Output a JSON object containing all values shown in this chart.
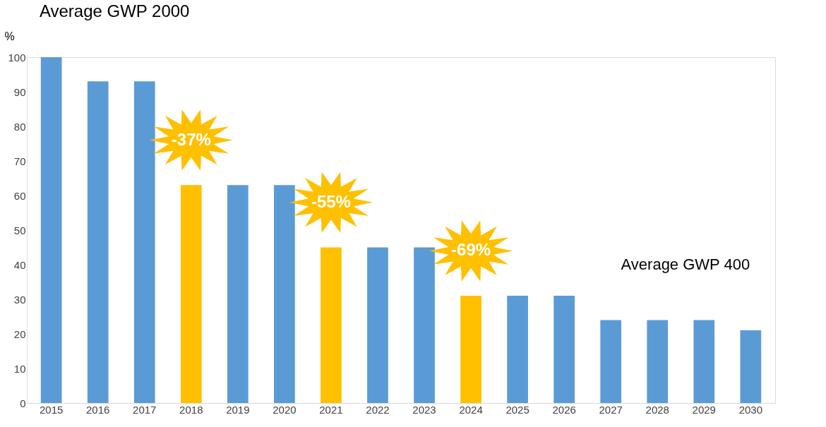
{
  "chart_data": {
    "type": "bar",
    "title": "Average GWP 2000",
    "ylabel": "%",
    "categories": [
      "2015",
      "2016",
      "2017",
      "2018",
      "2019",
      "2020",
      "2021",
      "2022",
      "2023",
      "2024",
      "2025",
      "2026",
      "2027",
      "2028",
      "2029",
      "2030"
    ],
    "values": [
      100,
      93,
      93,
      63,
      63,
      63,
      45,
      45,
      45,
      31,
      31,
      31,
      24,
      24,
      24,
      21
    ],
    "colors": [
      "#5b9bd5",
      "#5b9bd5",
      "#5b9bd5",
      "#ffc000",
      "#5b9bd5",
      "#5b9bd5",
      "#ffc000",
      "#5b9bd5",
      "#5b9bd5",
      "#ffc000",
      "#5b9bd5",
      "#5b9bd5",
      "#5b9bd5",
      "#5b9bd5",
      "#5b9bd5",
      "#5b9bd5"
    ],
    "ylim": [
      0,
      100
    ],
    "yticks": [
      0,
      10,
      20,
      30,
      40,
      50,
      60,
      70,
      80,
      90,
      100
    ],
    "grid": false,
    "annotations": [
      "-37%",
      "-55%",
      "-69%",
      "Average GWP 400"
    ]
  }
}
